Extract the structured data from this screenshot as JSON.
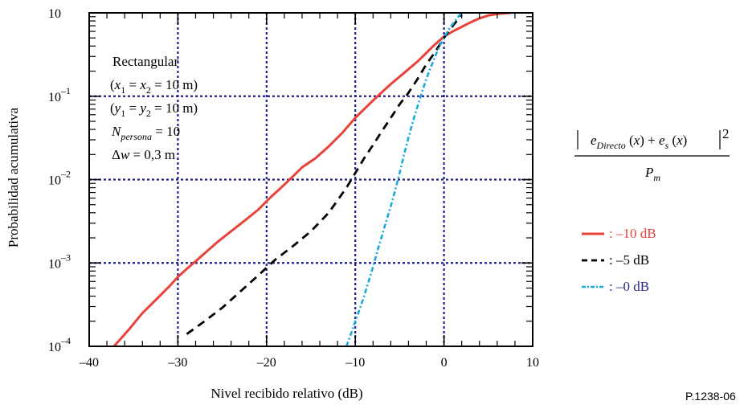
{
  "chart_data": {
    "type": "line",
    "xlabel": "Nivel recibido relativo (dB)",
    "ylabel": "Probabilidad acumulativa",
    "xlim": [
      -40,
      10
    ],
    "ylim": [
      0.0001,
      1
    ],
    "y_scale": "log",
    "grid": true,
    "x_ticks": [
      "–40",
      "–30",
      "–20",
      "–10",
      "0",
      "10"
    ],
    "y_ticks": [
      {
        "value": 0.0001,
        "base": "10",
        "exp": "–4"
      },
      {
        "value": 0.001,
        "base": "10",
        "exp": "–3"
      },
      {
        "value": 0.01,
        "base": "10",
        "exp": "–2"
      },
      {
        "value": 0.1,
        "base": "10",
        "exp": "–1"
      },
      {
        "value": 1,
        "base": "10",
        "exp": ""
      }
    ],
    "annotation": {
      "line1": "Rectangular",
      "line2": "(x1 = x2 = 10 m)",
      "line3": "(y1 = y2 = 10 m)",
      "line4": "Npersona = 10",
      "line5": "Δw = 0,3 m"
    },
    "formula": "|eDirecto(x) + es(x)|² / Pm",
    "legend_position": "right",
    "series": [
      {
        "name": ": –10 dB",
        "color": "#e8433a",
        "style": "solid",
        "x": [
          -37.2,
          -35.5,
          -34,
          -32.5,
          -31,
          -30,
          -29,
          -28,
          -27,
          -25.5,
          -24,
          -22.5,
          -21,
          -19.5,
          -18,
          -17,
          -16,
          -14.5,
          -13,
          -11.5,
          -10,
          -9,
          -7.5,
          -6,
          -4.5,
          -3,
          -2,
          -1,
          0,
          1,
          2,
          3,
          4,
          5,
          6,
          7.5
        ],
        "y": [
          0.0001,
          0.00016,
          0.00025,
          0.00036,
          0.00052,
          0.00068,
          0.00085,
          0.00105,
          0.0013,
          0.0018,
          0.0024,
          0.0032,
          0.0043,
          0.0062,
          0.0087,
          0.011,
          0.014,
          0.018,
          0.025,
          0.036,
          0.055,
          0.07,
          0.1,
          0.14,
          0.19,
          0.26,
          0.33,
          0.42,
          0.52,
          0.6,
          0.68,
          0.77,
          0.86,
          0.93,
          0.97,
          1.0
        ]
      },
      {
        "name": ": –5 dB",
        "color": "#000000",
        "style": "dashed",
        "x": [
          -29,
          -27,
          -25,
          -23,
          -21,
          -19,
          -17,
          -15,
          -13,
          -11,
          -10,
          -9,
          -8,
          -7,
          -6,
          -5,
          -4,
          -3,
          -2,
          -1,
          0,
          1,
          2
        ],
        "y": [
          0.00014,
          0.0002,
          0.00029,
          0.00045,
          0.0007,
          0.0011,
          0.0016,
          0.0024,
          0.004,
          0.008,
          0.012,
          0.018,
          0.026,
          0.038,
          0.055,
          0.08,
          0.11,
          0.16,
          0.24,
          0.34,
          0.5,
          0.7,
          0.95
        ]
      },
      {
        "name": ": –0 dB",
        "color": "#1aa9df",
        "style": "dashdot",
        "x": [
          -11,
          -10.5,
          -10,
          -9.5,
          -9,
          -8.5,
          -8,
          -7.5,
          -7,
          -6.5,
          -6,
          -5.5,
          -5,
          -4.5,
          -4,
          -3.5,
          -3,
          -2.5,
          -2,
          -1.5,
          -1,
          -0.5,
          0,
          0.5,
          1,
          1.5,
          2
        ],
        "y": [
          0.0001,
          0.00014,
          0.0002,
          0.00028,
          0.0004,
          0.0006,
          0.0009,
          0.0014,
          0.0021,
          0.0032,
          0.0048,
          0.0075,
          0.012,
          0.02,
          0.032,
          0.05,
          0.075,
          0.11,
          0.16,
          0.22,
          0.3,
          0.4,
          0.5,
          0.62,
          0.74,
          0.87,
          1.0
        ]
      }
    ],
    "reference": "P.1238-06"
  }
}
